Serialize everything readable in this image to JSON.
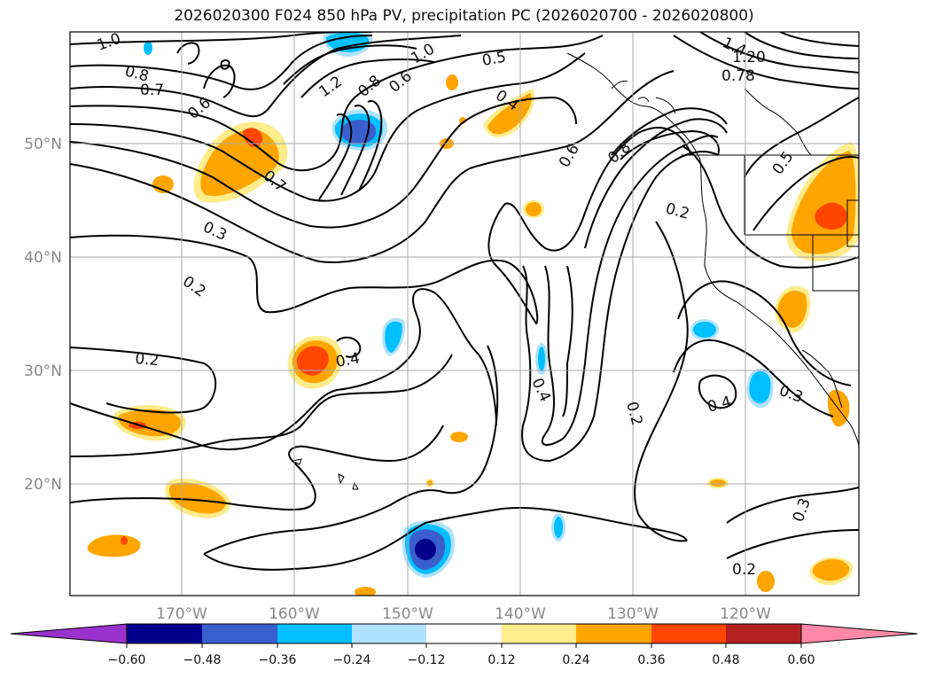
{
  "title": "2026020300 F024 850 hPa PV, precipitation PC (2026020700 - 2026020800)",
  "colors": {
    "grid": "#a9a9a9",
    "contour": "#000000",
    "coast": "#000000"
  },
  "map": {
    "lon_labels": [
      "170°W",
      "160°W",
      "150°W",
      "140°W",
      "130°W",
      "120°W"
    ],
    "lat_labels": [
      "50°N",
      "40°N",
      "30°N",
      "20°N"
    ]
  },
  "contour_labels": [
    "1.0",
    "0.8",
    "0.7",
    "0.6",
    "1.2",
    "0.8",
    "0.6",
    "1.0",
    "0.5",
    "0.4",
    "1.4",
    "1.20",
    "0.78",
    "0.7",
    "0.6",
    "0.8",
    "0.2",
    "0.5",
    "0.3",
    "0.2",
    "0.2",
    "0.4",
    "0.4",
    "0.2",
    "0.4",
    "0.3",
    "0.3",
    "0.2"
  ],
  "colorbar": {
    "ticks": [
      "−0.60",
      "−0.48",
      "−0.36",
      "−0.24",
      "−0.12",
      "0.12",
      "0.24",
      "0.36",
      "0.48",
      "0.60"
    ],
    "colors": [
      "#9932cc",
      "#00008b",
      "#3a5fcd",
      "#00bfff",
      "#b0e2ff",
      "#ffffff",
      "#ffec8b",
      "#ffa500",
      "#ff4500",
      "#b22222",
      "#ff88aa"
    ]
  }
}
